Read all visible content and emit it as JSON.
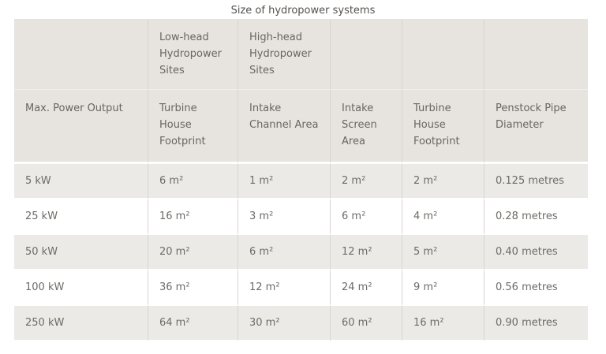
{
  "title": "Size of hydropower systems",
  "chart_data": {
    "type": "table",
    "title": "Size of hydropower systems",
    "group_headers": [
      "",
      "Low-head Hydropower Sites",
      "High-head Hydropower Sites",
      "",
      "",
      ""
    ],
    "columns": [
      "Max. Power Output",
      "Turbine House Footprint",
      "Intake Channel Area",
      "Intake Screen Area",
      "Turbine House Footprint",
      "Penstock Pipe Diameter"
    ],
    "rows": [
      [
        "5 kW",
        "6 m²",
        "1 m²",
        "2 m²",
        "2 m²",
        "0.125 metres"
      ],
      [
        "25 kW",
        "16 m²",
        "3 m²",
        "6 m²",
        "4 m²",
        "0.28 metres"
      ],
      [
        "50 kW",
        "20 m²",
        "6 m²",
        "12 m²",
        "5 m²",
        "0.40 metres"
      ],
      [
        "100 kW",
        "36 m²",
        "12 m²",
        "24 m²",
        "9 m²",
        "0.56 metres"
      ],
      [
        "250 kW",
        "64 m²",
        "30 m²",
        "60 m²",
        "16 m²",
        "0.90 metres"
      ]
    ]
  },
  "colors": {
    "header_bg": "#e7e3df",
    "row_odd_bg": "#eceae7",
    "row_even_bg": "#ffffff",
    "divider": "#d8d5d1",
    "header_divider_h": "#f0eeec",
    "header_text": "#6a655f",
    "body_text": "#6e6b67",
    "title_text": "#55514d"
  }
}
